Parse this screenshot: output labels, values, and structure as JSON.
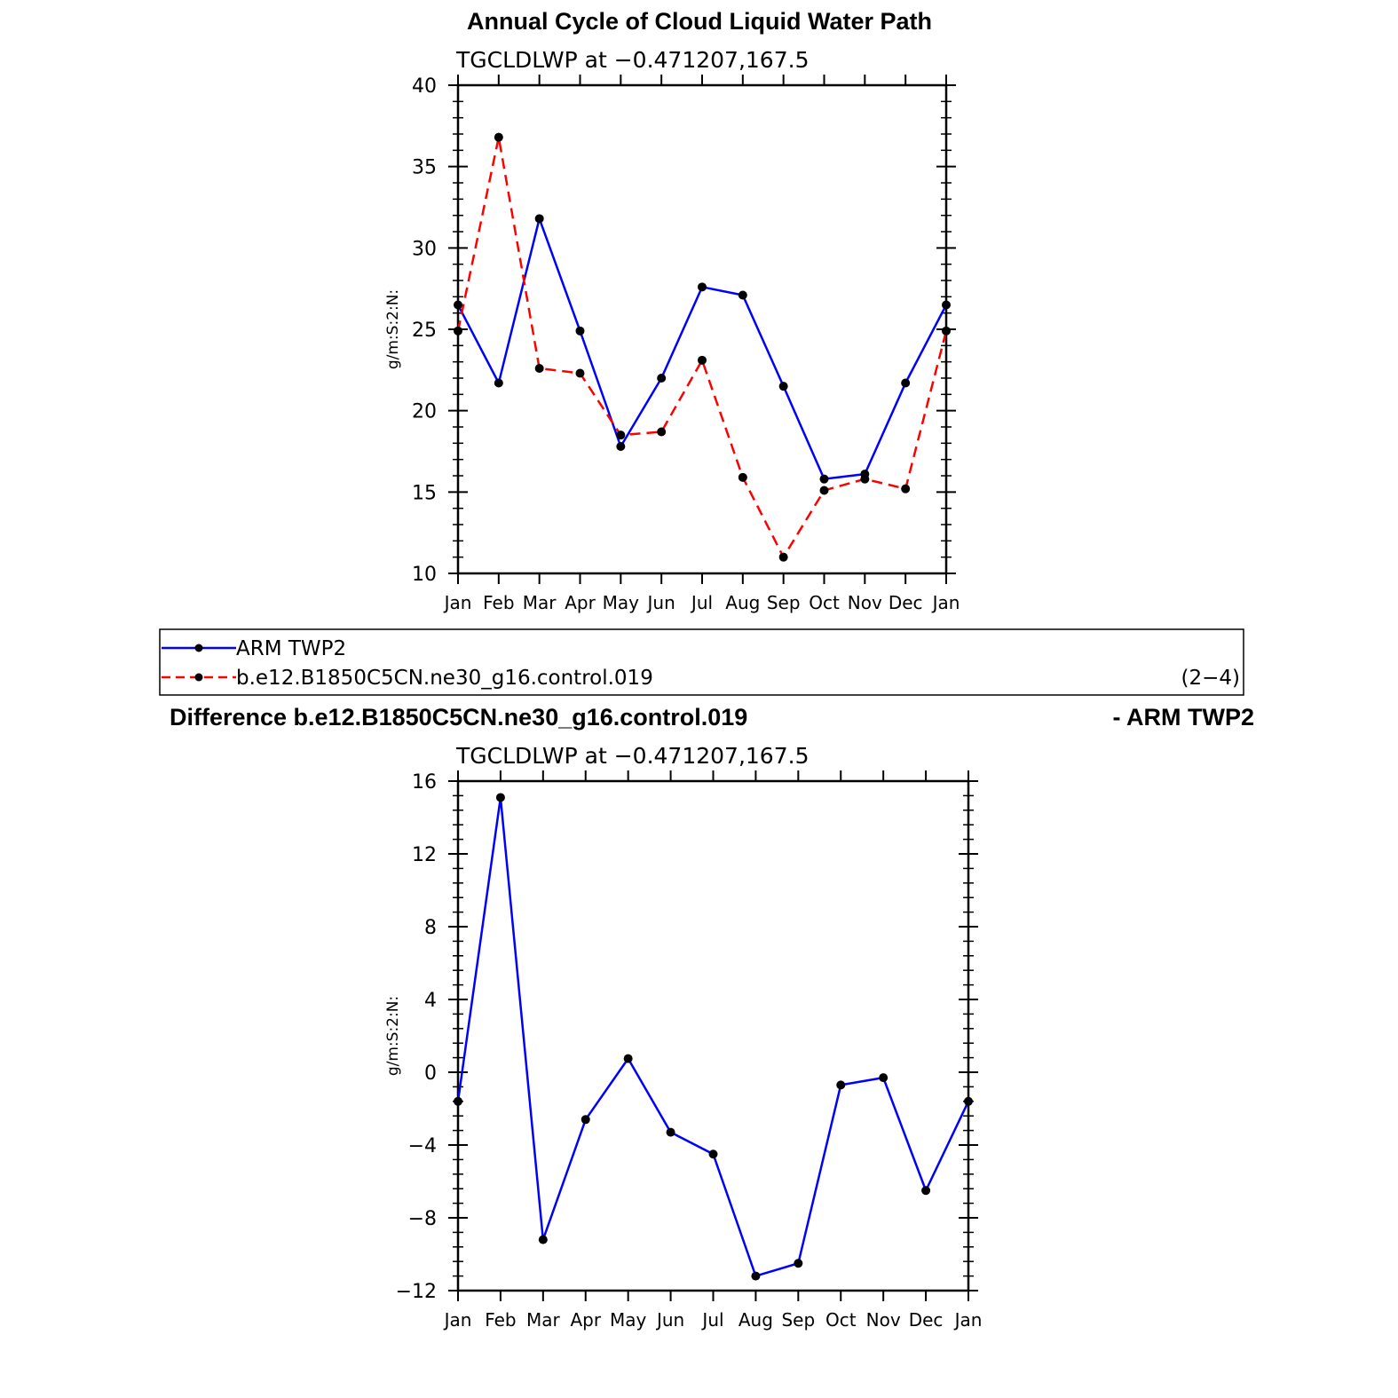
{
  "chart_data": [
    {
      "type": "line",
      "title": "Annual Cycle of Cloud Liquid Water Path",
      "subtitle": "TGCLDLWP at −0.471207,167.5",
      "ylabel": "g/m:S:2:N:",
      "xlabel": "",
      "ylim": [
        10,
        40
      ],
      "yticks": [
        10,
        15,
        20,
        25,
        30,
        35,
        40
      ],
      "ytick_labels": [
        "10",
        "15",
        "20",
        "25",
        "30",
        "35",
        "40"
      ],
      "categories": [
        "Jan",
        "Feb",
        "Mar",
        "Apr",
        "May",
        "Jun",
        "Jul",
        "Aug",
        "Sep",
        "Oct",
        "Nov",
        "Dec",
        "Jan"
      ],
      "series": [
        {
          "name": "ARM TWP2",
          "color": "#0000ff",
          "dash": "solid",
          "values": [
            26.5,
            21.7,
            31.8,
            24.9,
            17.8,
            22.0,
            27.6,
            27.1,
            21.5,
            15.8,
            16.1,
            21.7,
            26.5
          ]
        },
        {
          "name": "b.e12.B1850C5CN.ne30_g16.control.019",
          "color": "#ff0000",
          "dash": "dashed",
          "values": [
            24.9,
            36.8,
            22.6,
            22.3,
            18.5,
            18.7,
            23.1,
            15.9,
            11.0,
            15.1,
            15.8,
            15.2,
            24.9
          ]
        }
      ],
      "legend": {
        "entries": [
          "ARM TWP2",
          "b.e12.B1850C5CN.ne30_g16.control.019"
        ],
        "note": "(2−4)",
        "placement": "below"
      }
    },
    {
      "type": "line",
      "title_left": "Difference b.e12.B1850C5CN.ne30_g16.control.019",
      "title_right": "- ARM TWP2",
      "subtitle": "TGCLDLWP at −0.471207,167.5",
      "ylabel": "g/m:S:2:N:",
      "xlabel": "",
      "ylim": [
        -12,
        16
      ],
      "yticks": [
        -12,
        -8,
        -4,
        0,
        4,
        8,
        12,
        16
      ],
      "ytick_labels": [
        "−12",
        "−8",
        "−4",
        "0",
        "4",
        "8",
        "12",
        "16"
      ],
      "categories": [
        "Jan",
        "Feb",
        "Mar",
        "Apr",
        "May",
        "Jun",
        "Jul",
        "Aug",
        "Sep",
        "Oct",
        "Nov",
        "Dec",
        "Jan"
      ],
      "series": [
        {
          "name": "difference",
          "color": "#0000ff",
          "dash": "solid",
          "values": [
            -1.6,
            15.1,
            -9.2,
            -2.6,
            0.75,
            -3.3,
            -4.5,
            -11.2,
            -10.5,
            -0.7,
            -0.3,
            -6.5,
            -1.6
          ]
        }
      ]
    }
  ]
}
